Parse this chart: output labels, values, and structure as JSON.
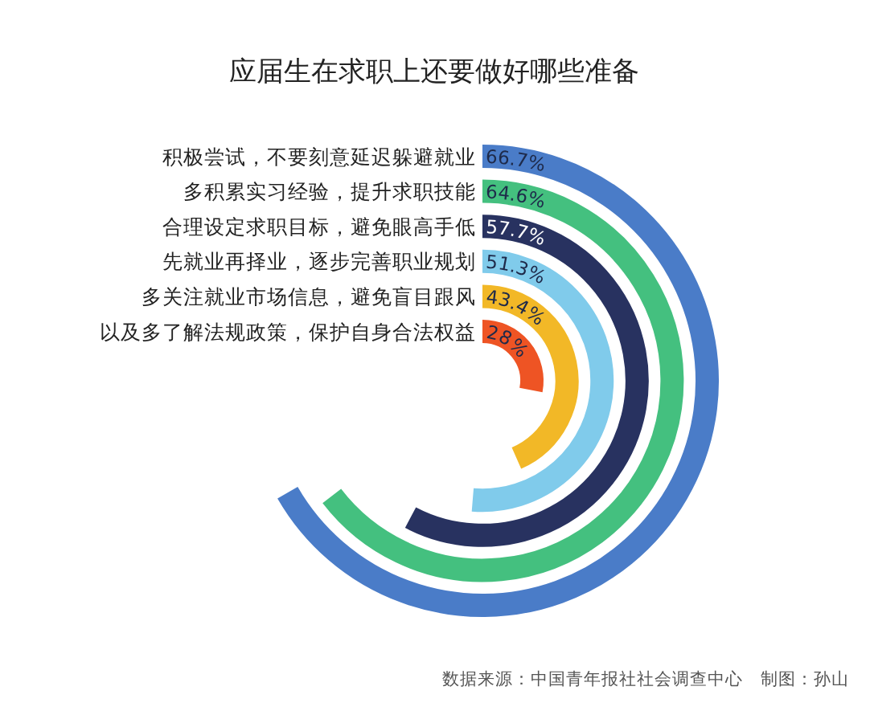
{
  "chart_data": {
    "type": "other",
    "title": "应届生在求职上还要做好哪些准备",
    "categories": [
      "积极尝试，不要刻意延迟躲避就业",
      "多积累实习经验，提升求职技能",
      "合理设定求职目标，避免眼高手低",
      "先就业再择业，逐步完善职业规划",
      "多关注就业市场信息，避免盲目跟风",
      "以及多了解法规政策，保护自身合法权益"
    ],
    "values": [
      66.7,
      64.6,
      57.7,
      51.3,
      43.4,
      28
    ],
    "value_labels": [
      "66.7%",
      "64.6%",
      "57.7%",
      "51.3%",
      "43.4%",
      "28%"
    ],
    "colors": [
      "#4a7cc8",
      "#44c07f",
      "#283260",
      "#80cbeb",
      "#f2b827",
      "#ee5424"
    ],
    "annotations": [
      "数据来源：中国青年报社社会调查中心　制图：孙山"
    ]
  }
}
